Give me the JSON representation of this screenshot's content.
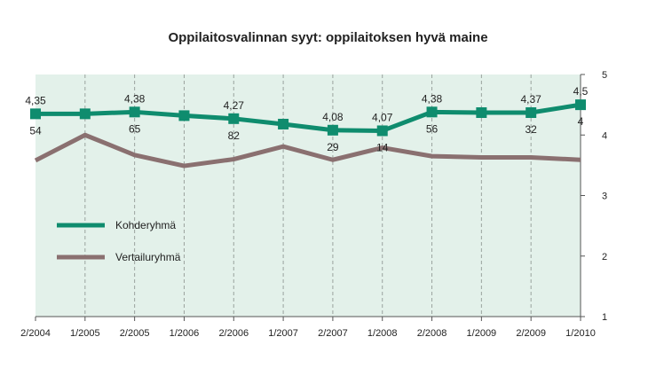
{
  "chart_data": {
    "type": "line",
    "title": "Oppilaitosvalinnan syyt: oppilaitoksen hyvä maine",
    "xlabel": "",
    "ylabel": "",
    "ylim": [
      1,
      5
    ],
    "yticks": [
      1,
      2,
      3,
      4,
      5
    ],
    "grid": "vertical dashed",
    "legend_position": "left",
    "categories": [
      "2/2004",
      "1/2005",
      "2/2005",
      "1/2006",
      "2/2006",
      "1/2007",
      "2/2007",
      "1/2008",
      "2/2008",
      "1/2009",
      "2/2009",
      "1/2010"
    ],
    "series": [
      {
        "name": "Kohderyhmä",
        "color": "#0f8c6e",
        "values": [
          4.35,
          4.35,
          4.38,
          4.32,
          4.27,
          4.18,
          4.08,
          4.07,
          4.38,
          4.37,
          4.37,
          4.5
        ],
        "value_labels": [
          "4,35",
          "",
          "4,38",
          "",
          "4,27",
          "",
          "4,08",
          "4,07",
          "4,38",
          "",
          "4,37",
          "4,5"
        ]
      },
      {
        "name": "Vertailuryhmä",
        "color": "#8a7070",
        "values": [
          3.58,
          4.0,
          3.67,
          3.49,
          3.6,
          3.81,
          3.59,
          3.79,
          3.65,
          3.63,
          3.63,
          3.59
        ],
        "value_labels": []
      }
    ],
    "count_labels": [
      "54",
      "",
      "65",
      "",
      "82",
      "",
      "29",
      "14",
      "56",
      "",
      "32",
      "4"
    ]
  }
}
